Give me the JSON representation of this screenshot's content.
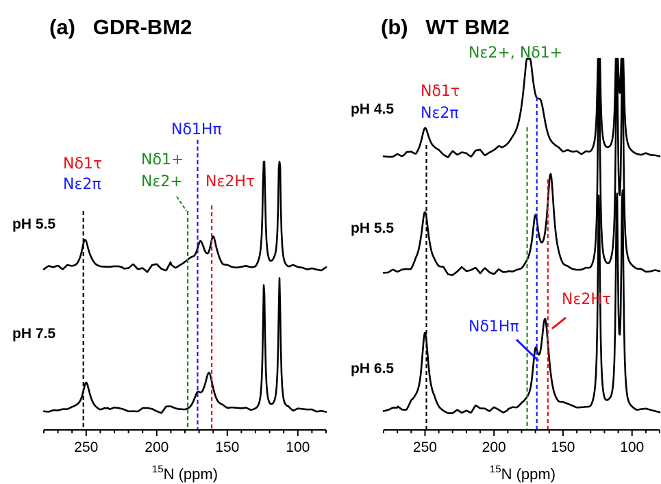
{
  "colors": {
    "black": "#000000",
    "red": "#e8121a",
    "blue": "#1a1aff",
    "green": "#1f8a1f"
  },
  "chart_data": [
    {
      "type": "line",
      "title": "(a)   GDR-BM2",
      "xlabel": "15N (ppm)",
      "x_superscript": "15",
      "x_base": "N (ppm)",
      "xlim": [
        280,
        80
      ],
      "x_reversed": true,
      "xticks": [
        250,
        200,
        150,
        100
      ],
      "series": [
        {
          "name": "pH 5.5",
          "peaks": [
            {
              "ppm": 251,
              "height": 0.42,
              "width": 3.2
            },
            {
              "ppm": 176,
              "height": 0.13,
              "width": 4.5
            },
            {
              "ppm": 169,
              "height": 0.33,
              "width": 3.0
            },
            {
              "ppm": 160,
              "height": 0.44,
              "width": 2.8
            },
            {
              "ppm": 124,
              "height": 2.0,
              "width": 0.9
            },
            {
              "ppm": 113,
              "height": 2.0,
              "width": 0.9
            }
          ]
        },
        {
          "name": "pH 7.5",
          "peaks": [
            {
              "ppm": 250,
              "height": 0.42,
              "width": 3.0
            },
            {
              "ppm": 171,
              "height": 0.2,
              "width": 2.8
            },
            {
              "ppm": 163,
              "height": 0.58,
              "width": 3.4
            },
            {
              "ppm": 124,
              "height": 2.0,
              "width": 0.9
            },
            {
              "ppm": 113,
              "height": 2.0,
              "width": 0.9
            }
          ]
        }
      ],
      "markers": [
        {
          "ppm": 252,
          "color": "black"
        },
        {
          "ppm": 178,
          "color": "green"
        },
        {
          "ppm": 171,
          "color": "blue"
        },
        {
          "ppm": 161,
          "color": "red"
        }
      ],
      "annotations": {
        "nd1_tau": "Nδ1τ",
        "ne2_pi": "Nε2π",
        "nd1_plus": "Nδ1+",
        "ne2_plus": "Nε2+",
        "nd1h_pi": "Nδ1Hπ",
        "ne2h_tau": "Nε2Hτ"
      }
    },
    {
      "type": "line",
      "title": "(b)   WT BM2",
      "xlabel": "15N (ppm)",
      "x_superscript": "15",
      "x_base": "N (ppm)",
      "xlim": [
        280,
        80
      ],
      "x_reversed": true,
      "xticks": [
        250,
        200,
        150,
        100
      ],
      "series": [
        {
          "name": "pH 4.5",
          "peaks": [
            {
              "ppm": 250,
              "height": 0.32,
              "width": 3.2
            },
            {
              "ppm": 185,
              "height": 0.06,
              "width": 8.0
            },
            {
              "ppm": 175,
              "height": 1.1,
              "width": 4.5
            },
            {
              "ppm": 166,
              "height": 0.4,
              "width": 4.0
            },
            {
              "ppm": 124,
              "height": 2.0,
              "width": 0.9
            },
            {
              "ppm": 111,
              "height": 2.0,
              "width": 0.9
            },
            {
              "ppm": 107,
              "height": 2.0,
              "width": 0.9
            }
          ]
        },
        {
          "name": "pH 5.5",
          "peaks": [
            {
              "ppm": 250,
              "height": 0.58,
              "width": 3.0
            },
            {
              "ppm": 170,
              "height": 0.48,
              "width": 2.6
            },
            {
              "ppm": 159,
              "height": 0.88,
              "width": 3.0
            },
            {
              "ppm": 124,
              "height": 2.0,
              "width": 0.9
            },
            {
              "ppm": 111,
              "height": 2.0,
              "width": 0.9
            },
            {
              "ppm": 107,
              "height": 2.0,
              "width": 0.9
            }
          ]
        },
        {
          "name": "pH 6.5",
          "peaks": [
            {
              "ppm": 250,
              "height": 0.68,
              "width": 3.0
            },
            {
              "ppm": 170,
              "height": 0.4,
              "width": 2.6
            },
            {
              "ppm": 163,
              "height": 0.8,
              "width": 3.4
            },
            {
              "ppm": 124,
              "height": 2.0,
              "width": 0.9
            },
            {
              "ppm": 111,
              "height": 2.0,
              "width": 0.9
            },
            {
              "ppm": 107,
              "height": 2.0,
              "width": 0.9
            }
          ]
        }
      ],
      "markers": [
        {
          "ppm": 249,
          "color": "black"
        },
        {
          "ppm": 176,
          "color": "green"
        },
        {
          "ppm": 169,
          "color": "blue"
        },
        {
          "ppm": 161,
          "color": "red"
        }
      ],
      "annotations": {
        "ne2_nd1_plus": "Nε2+, Nδ1+",
        "nd1_tau": "Nδ1τ",
        "ne2_pi": "Nε2π",
        "nd1h_pi": "Nδ1Hπ",
        "ne2h_tau": "Nε2Hτ"
      }
    }
  ]
}
